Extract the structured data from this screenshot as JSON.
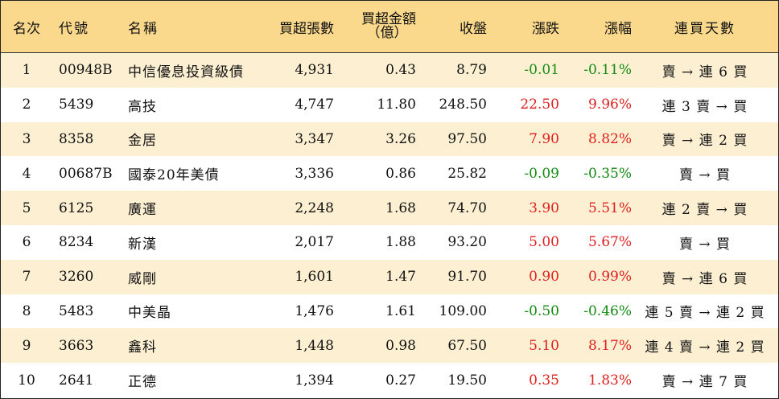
{
  "headers": {
    "rank": "名次",
    "code": "代號",
    "name": "名稱",
    "net_buy_shares": "買超張數",
    "net_buy_amount_line1": "買超金額",
    "net_buy_amount_line2": "（億）",
    "close": "收盤",
    "change": "漲跌",
    "change_pct": "漲幅",
    "consecutive_days": "連買天數"
  },
  "colors": {
    "header_bg": "#fbd98c",
    "stripe_bg": "#fdf0d2",
    "up": "#e02020",
    "down": "#138a13"
  },
  "rows": [
    {
      "rank": "1",
      "code": "00948B",
      "name": "中信優息投資級債",
      "shares": "4,931",
      "amount": "0.43",
      "close": "8.79",
      "change": "-0.01",
      "pct": "-0.11%",
      "trend": "down",
      "days": "賣 → 連 6 買"
    },
    {
      "rank": "2",
      "code": "5439",
      "name": "高技",
      "shares": "4,747",
      "amount": "11.80",
      "close": "248.50",
      "change": "22.50",
      "pct": "9.96%",
      "trend": "up",
      "days": "連 3 賣 → 買"
    },
    {
      "rank": "3",
      "code": "8358",
      "name": "金居",
      "shares": "3,347",
      "amount": "3.26",
      "close": "97.50",
      "change": "7.90",
      "pct": "8.82%",
      "trend": "up",
      "days": "賣 → 連 2 買"
    },
    {
      "rank": "4",
      "code": "00687B",
      "name": "國泰20年美債",
      "shares": "3,336",
      "amount": "0.86",
      "close": "25.82",
      "change": "-0.09",
      "pct": "-0.35%",
      "trend": "down",
      "days": "賣 → 買"
    },
    {
      "rank": "5",
      "code": "6125",
      "name": "廣運",
      "shares": "2,248",
      "amount": "1.68",
      "close": "74.70",
      "change": "3.90",
      "pct": "5.51%",
      "trend": "up",
      "days": "連 2 賣 → 買"
    },
    {
      "rank": "6",
      "code": "8234",
      "name": "新漢",
      "shares": "2,017",
      "amount": "1.88",
      "close": "93.20",
      "change": "5.00",
      "pct": "5.67%",
      "trend": "up",
      "days": "賣 → 買"
    },
    {
      "rank": "7",
      "code": "3260",
      "name": "威剛",
      "shares": "1,601",
      "amount": "1.47",
      "close": "91.70",
      "change": "0.90",
      "pct": "0.99%",
      "trend": "up",
      "days": "賣 → 連 6 買"
    },
    {
      "rank": "8",
      "code": "5483",
      "name": "中美晶",
      "shares": "1,476",
      "amount": "1.61",
      "close": "109.00",
      "change": "-0.50",
      "pct": "-0.46%",
      "trend": "down",
      "days": "連 5 賣 → 連 2 買"
    },
    {
      "rank": "9",
      "code": "3663",
      "name": "鑫科",
      "shares": "1,448",
      "amount": "0.98",
      "close": "67.50",
      "change": "5.10",
      "pct": "8.17%",
      "trend": "up",
      "days": "連 4 賣 → 連 2 買"
    },
    {
      "rank": "10",
      "code": "2641",
      "name": "正德",
      "shares": "1,394",
      "amount": "0.27",
      "close": "19.50",
      "change": "0.35",
      "pct": "1.83%",
      "trend": "up",
      "days": "賣 → 連 7 買"
    }
  ]
}
